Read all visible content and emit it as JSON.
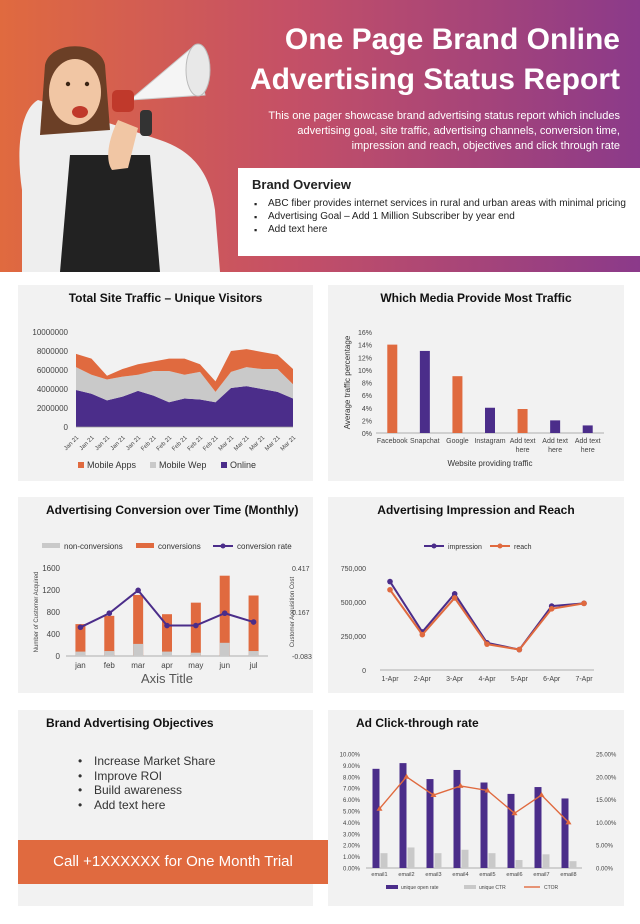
{
  "header": {
    "title_line1": "One Page Brand Online",
    "title_line2": "Advertising Status Report",
    "description": "This one pager showcase brand advertising status report which includes advertising goal, site traffic, advertising channels, conversion time, impression and reach, objectives and click through rate"
  },
  "overview": {
    "title": "Brand Overview",
    "items": [
      "ABC fiber provides internet services in rural and urban areas with minimal pricing",
      "Advertising Goal –  Add 1 Million Subscriber by year end",
      "Add text here"
    ]
  },
  "colors": {
    "orange": "#e06a3f",
    "purple": "#4b2d8a",
    "gray": "#c9c9c9"
  },
  "panels": {
    "traffic_title": "Total Site Traffic – Unique Visitors",
    "media_title": "Which Media Provide Most Traffic",
    "conversion_title": "Advertising Conversion over Time (Monthly)",
    "impression_title": "Advertising Impression and Reach",
    "objectives_title": "Brand Advertising Objectives",
    "ctr_title": "Ad Click-through rate"
  },
  "objectives": {
    "items": [
      "Increase Market Share",
      "Improve  ROI",
      "Build awareness",
      "Add text here"
    ],
    "cta": "Call  +1XXXXXX for One Month Trial"
  },
  "chart_data": [
    {
      "type": "area",
      "title": "Total Site Traffic – Unique Visitors",
      "categories": [
        "Jan 21",
        "Jan 21",
        "Jan 21",
        "Jan 21",
        "Jan 21",
        "Feb 21",
        "Feb 21",
        "Feb 21",
        "Feb 21",
        "Feb 21",
        "Mar 21",
        "Mar 21",
        "Mar 21",
        "Mar 21",
        "Mar 21"
      ],
      "series": [
        {
          "name": "Online",
          "values": [
            3900000,
            3500000,
            2800000,
            3200000,
            3800000,
            3300000,
            2600000,
            3000000,
            2900000,
            2600000,
            4100000,
            4300000,
            4000000,
            3700000,
            3000000
          ]
        },
        {
          "name": "Mobile Wep",
          "values": [
            2400000,
            2000000,
            2200000,
            2100000,
            1700000,
            2600000,
            3300000,
            2500000,
            2900000,
            1100000,
            1700000,
            2000000,
            2100000,
            2400000,
            1500000
          ]
        },
        {
          "name": "Mobile Apps",
          "values": [
            1400000,
            1700000,
            400000,
            800000,
            1100000,
            1000000,
            1300000,
            1700000,
            800000,
            1100000,
            2200000,
            1900000,
            1800000,
            1500000,
            1600000
          ]
        }
      ],
      "yticks": [
        "0",
        "2000000",
        "4000000",
        "6000000",
        "8000000",
        "10000000"
      ],
      "ylim": [
        0,
        10000000
      ]
    },
    {
      "type": "bar",
      "title": "Which Media Provide Most Traffic",
      "categories": [
        "Facebook",
        "Snapchat",
        "Google",
        "Instagram",
        "Add text here",
        "Add text here",
        "Add text here"
      ],
      "values": [
        14,
        13,
        9,
        4,
        3.8,
        2,
        1.2
      ],
      "bar_colors": [
        "#e06a3f",
        "#4b2d8a",
        "#e06a3f",
        "#4b2d8a",
        "#e06a3f",
        "#4b2d8a",
        "#4b2d8a"
      ],
      "yticks": [
        "0%",
        "2%",
        "4%",
        "6%",
        "8%",
        "10%",
        "12%",
        "14%",
        "16%"
      ],
      "xlabel": "Website providing traffic",
      "ylabel": "Average traffic percentage",
      "ylim": [
        0,
        16
      ]
    },
    {
      "type": "bar",
      "title": "Advertising Conversion over Time (Monthly)",
      "categories": [
        "jan",
        "feb",
        "mar",
        "apr",
        "may",
        "jun",
        "jul"
      ],
      "series": [
        {
          "name": "non-conversions",
          "values": [
            80,
            90,
            220,
            80,
            60,
            240,
            90
          ]
        },
        {
          "name": "conversions",
          "values": [
            580,
            730,
            1110,
            760,
            970,
            1460,
            1100
          ]
        },
        {
          "name": "conversion rate",
          "values": [
            0.08,
            0.16,
            0.29,
            0.09,
            0.09,
            0.16,
            0.11
          ]
        }
      ],
      "yticks_left": [
        "0",
        "400",
        "800",
        "1200",
        "1600"
      ],
      "yticks_right": [
        "-0.083",
        "0.167",
        "0.417"
      ],
      "xlabel": "Axis Title",
      "ylabel": "Number of Customer Acquired",
      "ylabel_right": "Customer Acquisition Cost",
      "ylim": [
        0,
        1600
      ],
      "ylim_right": [
        -0.083,
        0.417
      ]
    },
    {
      "type": "line",
      "title": "Advertising Impression and Reach",
      "categories": [
        "1-Apr",
        "2-Apr",
        "3-Apr",
        "4-Apr",
        "5-Apr",
        "6-Apr",
        "7-Apr"
      ],
      "series": [
        {
          "name": "impression",
          "values": [
            650000,
            280000,
            560000,
            200000,
            150000,
            470000,
            490000
          ]
        },
        {
          "name": "reach",
          "values": [
            590000,
            260000,
            530000,
            190000,
            150000,
            450000,
            490000
          ]
        }
      ],
      "yticks": [
        "0",
        "250,000",
        "500,000",
        "750,000"
      ],
      "ylim": [
        0,
        750000
      ]
    },
    {
      "type": "bar",
      "title": "Ad Click-through rate",
      "categories": [
        "email1",
        "email2",
        "email3",
        "email4",
        "email5",
        "email6",
        "email7",
        "email8"
      ],
      "series": [
        {
          "name": "unique open rate",
          "values": [
            8.7,
            9.2,
            7.8,
            8.6,
            7.5,
            6.5,
            7.1,
            6.1
          ]
        },
        {
          "name": "unique CTR",
          "values": [
            1.3,
            1.8,
            1.3,
            1.6,
            1.3,
            0.7,
            1.2,
            0.6
          ]
        },
        {
          "name": "CTOR",
          "values": [
            13,
            20,
            16,
            18,
            17,
            12,
            16,
            10
          ]
        }
      ],
      "yticks_left": [
        "0.00%",
        "1.00%",
        "2.00%",
        "3.00%",
        "4.00%",
        "5.00%",
        "6.00%",
        "7.00%",
        "8.00%",
        "9.00%",
        "10.00%"
      ],
      "yticks_right": [
        "0.00%",
        "5.00%",
        "10.00%",
        "15.00%",
        "20.00%",
        "25.00%"
      ],
      "ylim": [
        0,
        10
      ],
      "ylim_right": [
        0,
        25
      ]
    }
  ]
}
